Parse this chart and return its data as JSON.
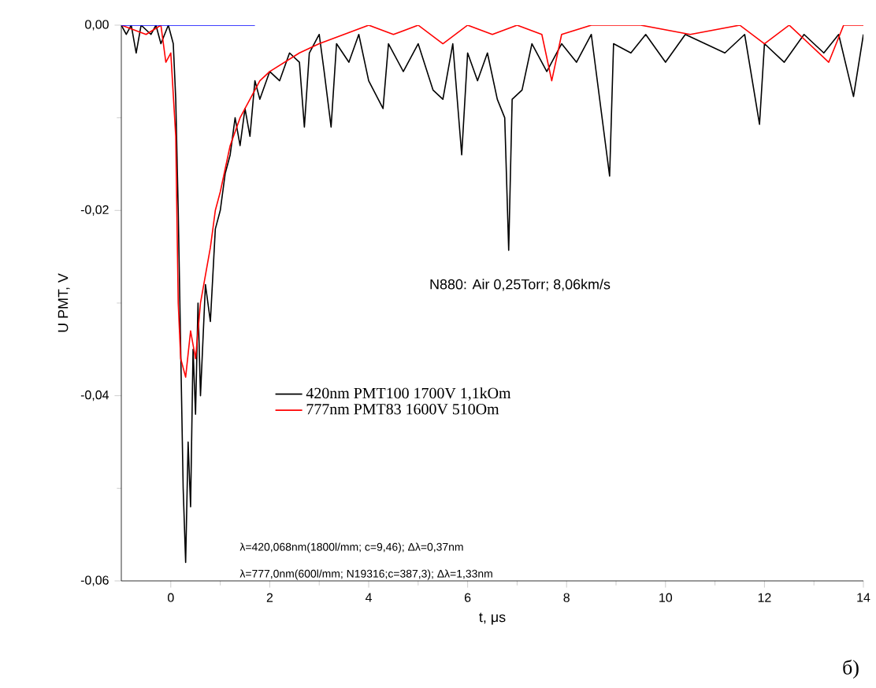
{
  "chart_data": {
    "type": "line",
    "xlabel": "t, μs",
    "ylabel": "U PMT, V",
    "xlim": [
      -1,
      14
    ],
    "ylim": [
      -0.06,
      0.0
    ],
    "xticks": [
      0,
      2,
      4,
      6,
      8,
      10,
      12,
      14
    ],
    "yticks": [
      {
        "value": -0.06,
        "label": "-0,06"
      },
      {
        "value": -0.04,
        "label": "-0,04"
      },
      {
        "value": -0.02,
        "label": "-0,02"
      },
      {
        "value": 0.0,
        "label": "0,00"
      }
    ],
    "legend": "center",
    "grid": false,
    "marker": "none",
    "line_style": "solid",
    "annotations": [
      "N880: Air 0,25Torr; 8,06km/s",
      "λ=420,068nm(1800l/mm; c=9,46); Δλ=0,37nm",
      "λ=777,0nm(600l/mm; N19316;c=387,3); Δλ=1,33nm",
      "б)"
    ],
    "series": [
      {
        "name": "420nm PMT100 1700V 1,1kOm",
        "color": "#000000",
        "x": [
          -1,
          -0.9,
          -0.8,
          -0.7,
          -0.6,
          -0.4,
          -0.3,
          -0.2,
          -0.05,
          0.05,
          0.1,
          0.15,
          0.2,
          0.25,
          0.3,
          0.35,
          0.4,
          0.45,
          0.5,
          0.55,
          0.6,
          0.7,
          0.8,
          0.9,
          1.0,
          1.1,
          1.2,
          1.3,
          1.4,
          1.5,
          1.6,
          1.7,
          1.8,
          2.0,
          2.2,
          2.4,
          2.6,
          2.7,
          2.8,
          3.0,
          3.1,
          3.24,
          3.35,
          3.6,
          3.8,
          4.0,
          4.29,
          4.4,
          4.7,
          5.0,
          5.3,
          5.5,
          5.7,
          5.88,
          6.0,
          6.2,
          6.4,
          6.6,
          6.75,
          6.83,
          6.9,
          7.1,
          7.3,
          7.6,
          7.9,
          8.2,
          8.5,
          8.87,
          8.95,
          9.3,
          9.6,
          10.0,
          10.4,
          10.8,
          11.2,
          11.6,
          11.9,
          12.0,
          12.4,
          12.8,
          13.2,
          13.5,
          13.8,
          14.0
        ],
        "values": [
          0,
          -0.001,
          0,
          -0.003,
          0,
          -0.001,
          0,
          -0.002,
          0,
          -0.002,
          -0.008,
          -0.02,
          -0.035,
          -0.05,
          -0.058,
          -0.045,
          -0.052,
          -0.035,
          -0.042,
          -0.03,
          -0.04,
          -0.028,
          -0.032,
          -0.022,
          -0.02,
          -0.016,
          -0.014,
          -0.01,
          -0.013,
          -0.009,
          -0.012,
          -0.006,
          -0.008,
          -0.005,
          -0.006,
          -0.003,
          -0.004,
          -0.011,
          -0.003,
          -0.001,
          -0.005,
          -0.011,
          -0.002,
          -0.004,
          -0.001,
          -0.006,
          -0.009,
          -0.002,
          -0.005,
          -0.002,
          -0.007,
          -0.008,
          -0.002,
          -0.014,
          -0.003,
          -0.006,
          -0.003,
          -0.008,
          -0.01,
          -0.0243,
          -0.008,
          -0.007,
          -0.002,
          -0.005,
          -0.002,
          -0.004,
          -0.001,
          -0.0163,
          -0.002,
          -0.003,
          -0.001,
          -0.004,
          -0.001,
          -0.002,
          -0.003,
          -0.001,
          -0.0107,
          -0.002,
          -0.004,
          -0.001,
          -0.003,
          -0.001,
          -0.0077,
          -0.001
        ]
      },
      {
        "name": "777nm PMT83 1600V 510Om",
        "color": "#ff0000",
        "x": [
          -1,
          -0.5,
          -0.2,
          -0.1,
          0.0,
          0.1,
          0.15,
          0.2,
          0.3,
          0.4,
          0.5,
          0.6,
          0.7,
          0.8,
          0.9,
          1.0,
          1.2,
          1.4,
          1.6,
          1.8,
          2.0,
          2.3,
          2.6,
          3.0,
          3.5,
          4.0,
          4.5,
          5.0,
          5.5,
          6.0,
          6.5,
          7.0,
          7.5,
          7.7,
          7.9,
          8.5,
          9.5,
          10.5,
          11.5,
          12.0,
          12.5,
          13.3,
          13.6,
          14.0
        ],
        "values": [
          0,
          -0.001,
          0,
          -0.004,
          -0.003,
          -0.012,
          -0.03,
          -0.036,
          -0.038,
          -0.033,
          -0.036,
          -0.03,
          -0.027,
          -0.024,
          -0.02,
          -0.018,
          -0.013,
          -0.01,
          -0.008,
          -0.006,
          -0.005,
          -0.004,
          -0.003,
          -0.002,
          -0.001,
          0,
          -0.001,
          0,
          -0.002,
          0,
          -0.001,
          0,
          -0.001,
          -0.006,
          -0.001,
          0,
          0,
          -0.001,
          0,
          -0.002,
          0,
          -0.004,
          0,
          0
        ]
      },
      {
        "color": "#0000ff",
        "x": [
          -1,
          1.7
        ],
        "values": [
          0,
          0
        ]
      }
    ]
  }
}
